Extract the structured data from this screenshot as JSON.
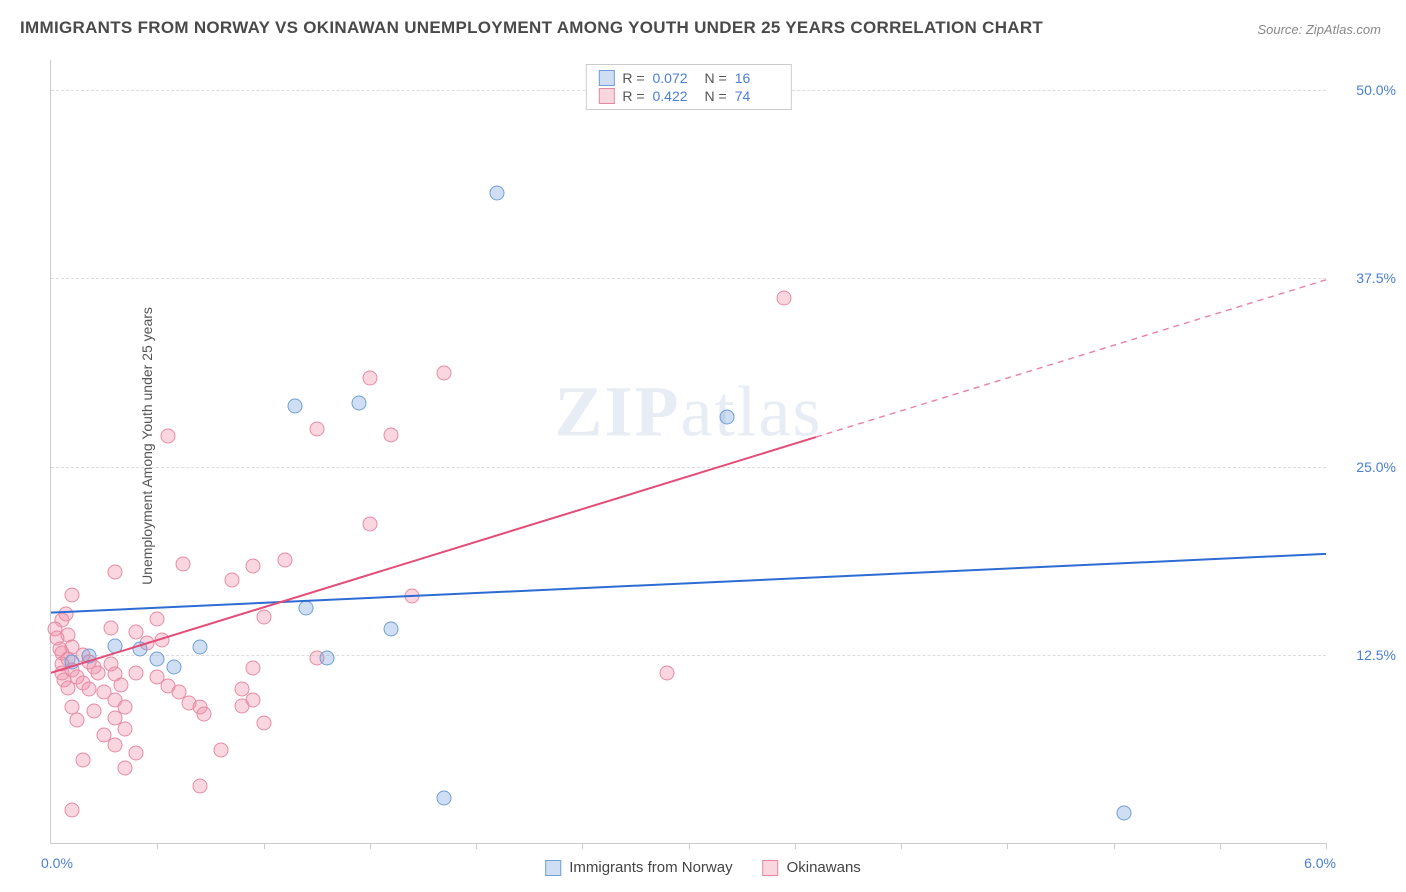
{
  "title": "IMMIGRANTS FROM NORWAY VS OKINAWAN UNEMPLOYMENT AMONG YOUTH UNDER 25 YEARS CORRELATION CHART",
  "source_prefix": "Source: ",
  "source_name": "ZipAtlas.com",
  "ylabel": "Unemployment Among Youth under 25 years",
  "watermark_bold": "ZIP",
  "watermark_rest": "atlas",
  "chart": {
    "type": "scatter",
    "xlim": [
      0.0,
      6.0
    ],
    "ylim": [
      0.0,
      52.0
    ],
    "xlim_labels": [
      "0.0%",
      "6.0%"
    ],
    "x_tick_positions": [
      0.5,
      1.0,
      1.5,
      2.0,
      2.5,
      3.0,
      3.5,
      4.0,
      4.5,
      5.0,
      5.5,
      6.0
    ],
    "y_gridlines": [
      12.5,
      25.0,
      37.5,
      50.0
    ],
    "y_tick_labels": [
      "12.5%",
      "25.0%",
      "37.5%",
      "50.0%"
    ],
    "background_color": "#ffffff",
    "grid_color": "#dddddd",
    "axis_color": "#cccccc",
    "tick_label_color": "#4a7fd4",
    "series": [
      {
        "key": "norway",
        "label": "Immigrants from Norway",
        "R": "0.072",
        "N": "16",
        "fill": "rgba(120,160,220,0.35)",
        "stroke": "#6e9fd8",
        "line_color": "#2d6cd2",
        "trend": {
          "x1": 0.0,
          "y1": 15.3,
          "x2": 6.0,
          "y2": 19.2,
          "dash_after_x": 6.0
        },
        "points": [
          [
            2.1,
            43.2
          ],
          [
            1.15,
            29.0
          ],
          [
            1.45,
            29.2
          ],
          [
            3.18,
            28.3
          ],
          [
            1.6,
            14.2
          ],
          [
            1.3,
            12.3
          ],
          [
            0.42,
            12.9
          ],
          [
            0.18,
            12.4
          ],
          [
            0.5,
            12.2
          ],
          [
            0.7,
            13.0
          ],
          [
            0.3,
            13.1
          ],
          [
            1.2,
            15.6
          ],
          [
            1.85,
            3.0
          ],
          [
            5.05,
            2.0
          ],
          [
            0.1,
            12.0
          ],
          [
            0.58,
            11.7
          ]
        ]
      },
      {
        "key": "okinawans",
        "label": "Okinawans",
        "R": "0.422",
        "N": "74",
        "fill": "rgba(240,140,165,0.35)",
        "stroke": "#e68aa2",
        "line_color": "#e34d78",
        "trend": {
          "x1": 0.0,
          "y1": 11.3,
          "x2": 6.0,
          "y2": 37.4,
          "dash_after_x": 3.6
        },
        "points": [
          [
            3.45,
            36.2
          ],
          [
            2.9,
            11.3
          ],
          [
            0.55,
            27.0
          ],
          [
            0.85,
            17.5
          ],
          [
            0.62,
            18.5
          ],
          [
            0.3,
            18.0
          ],
          [
            0.1,
            16.5
          ],
          [
            0.05,
            14.8
          ],
          [
            0.08,
            13.8
          ],
          [
            0.1,
            13.0
          ],
          [
            0.15,
            12.5
          ],
          [
            0.18,
            12.0
          ],
          [
            0.05,
            12.6
          ],
          [
            0.08,
            12.2
          ],
          [
            0.2,
            11.7
          ],
          [
            0.22,
            11.3
          ],
          [
            0.28,
            11.9
          ],
          [
            0.3,
            11.2
          ],
          [
            0.33,
            10.5
          ],
          [
            0.1,
            11.5
          ],
          [
            0.12,
            11.0
          ],
          [
            0.15,
            10.6
          ],
          [
            0.18,
            10.2
          ],
          [
            0.25,
            10.0
          ],
          [
            0.3,
            9.5
          ],
          [
            0.35,
            9.0
          ],
          [
            0.2,
            8.8
          ],
          [
            0.3,
            8.3
          ],
          [
            0.35,
            7.6
          ],
          [
            0.25,
            7.2
          ],
          [
            0.3,
            6.5
          ],
          [
            0.4,
            6.0
          ],
          [
            0.15,
            5.5
          ],
          [
            0.35,
            5.0
          ],
          [
            0.4,
            11.3
          ],
          [
            0.5,
            11.0
          ],
          [
            0.55,
            10.4
          ],
          [
            0.6,
            10.0
          ],
          [
            0.65,
            9.3
          ],
          [
            0.7,
            9.0
          ],
          [
            0.72,
            8.6
          ],
          [
            0.8,
            6.2
          ],
          [
            0.9,
            9.1
          ],
          [
            0.7,
            3.8
          ],
          [
            0.1,
            2.2
          ],
          [
            1.5,
            30.9
          ],
          [
            1.85,
            31.2
          ],
          [
            1.25,
            27.5
          ],
          [
            1.6,
            27.1
          ],
          [
            1.5,
            21.2
          ],
          [
            1.1,
            18.8
          ],
          [
            0.95,
            18.4
          ],
          [
            1.0,
            15.0
          ],
          [
            1.7,
            16.4
          ],
          [
            1.25,
            12.3
          ],
          [
            0.95,
            11.6
          ],
          [
            0.9,
            10.2
          ],
          [
            0.95,
            9.5
          ],
          [
            1.0,
            8.0
          ],
          [
            0.45,
            13.3
          ],
          [
            0.4,
            14.0
          ],
          [
            0.5,
            14.9
          ],
          [
            0.52,
            13.5
          ],
          [
            0.28,
            14.3
          ],
          [
            0.05,
            11.9
          ],
          [
            0.06,
            10.8
          ],
          [
            0.04,
            12.9
          ],
          [
            0.03,
            13.6
          ],
          [
            0.02,
            14.2
          ],
          [
            0.07,
            15.2
          ],
          [
            0.05,
            11.3
          ],
          [
            0.08,
            10.3
          ],
          [
            0.1,
            9.0
          ],
          [
            0.12,
            8.2
          ]
        ]
      }
    ]
  },
  "legend_top": {
    "R_label": "R =",
    "N_label": "N ="
  }
}
